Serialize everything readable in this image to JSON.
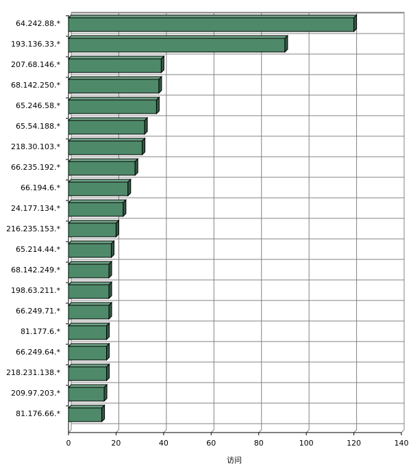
{
  "chart_data": {
    "type": "bar",
    "orientation": "horizontal",
    "title": "",
    "xlabel": "访问",
    "ylabel": "",
    "xlim": [
      0,
      140
    ],
    "xticks": [
      0,
      20,
      40,
      60,
      80,
      100,
      120,
      140
    ],
    "grid": true,
    "legend": "none",
    "bar_color": "#4E8A6A",
    "categories": [
      "64.242.88.*",
      "193.136.33.*",
      "207.68.146.*",
      "68.142.250.*",
      "65.246.58.*",
      "65.54.188.*",
      "218.30.103.*",
      "66.235.192.*",
      "66.194.6.*",
      "24.177.134.*",
      "216.235.153.*",
      "65.214.44.*",
      "68.142.249.*",
      "198.63.211.*",
      "66.249.71.*",
      "81.177.6.*",
      "66.249.64.*",
      "218.231.138.*",
      "209.97.203.*",
      "81.176.66.*"
    ],
    "values": [
      120,
      91,
      39,
      38,
      37,
      32,
      31,
      28,
      25,
      23,
      20,
      18,
      17,
      17,
      17,
      16,
      16,
      16,
      15,
      14
    ]
  }
}
